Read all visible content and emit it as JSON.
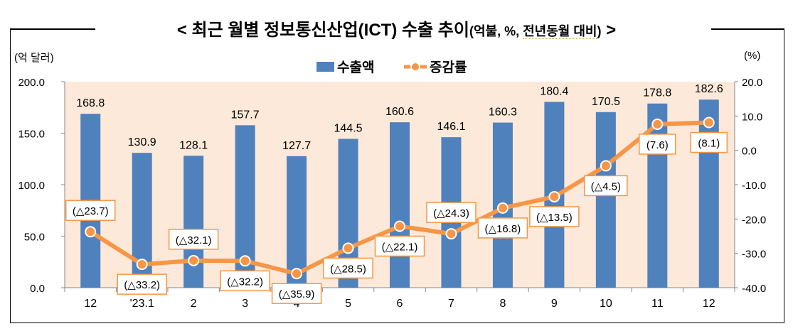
{
  "title": {
    "main": "< 최근 월별 정보통신산업(ICT) 수출 추이",
    "sub_prefix": "(억불, %, ",
    "sub_underlined": "전년동월 대비",
    "sub_suffix": ")",
    "close": " >"
  },
  "chart_data": {
    "type": "bar+line",
    "categories": [
      "12",
      "'23.1",
      "2",
      "3",
      "4",
      "5",
      "6",
      "7",
      "8",
      "9",
      "10",
      "11",
      "12"
    ],
    "series": [
      {
        "name": "수출액",
        "type": "bar",
        "axis": "left",
        "color": "#4f81bd",
        "values": [
          168.8,
          130.9,
          128.1,
          157.7,
          127.7,
          144.5,
          160.6,
          146.1,
          160.3,
          180.4,
          170.5,
          178.8,
          182.6
        ],
        "labels": [
          "168.8",
          "130.9",
          "128.1",
          "157.7",
          "127.7",
          "144.5",
          "160.6",
          "146.1",
          "160.3",
          "180.4",
          "170.5",
          "178.8",
          "182.6"
        ]
      },
      {
        "name": "증감률",
        "type": "line",
        "axis": "right",
        "color": "#f79646",
        "values": [
          -23.7,
          -33.2,
          -32.1,
          -32.2,
          -35.9,
          -28.5,
          -22.1,
          -24.3,
          -16.8,
          -13.5,
          -4.5,
          7.6,
          8.1
        ],
        "labels": [
          "(△23.7)",
          "(△33.2)",
          "(△32.1)",
          "(△32.2)",
          "(△35.9)",
          "(△28.5)",
          "(△22.1)",
          "(△24.3)",
          "(△16.8)",
          "(△13.5)",
          "(△4.5)",
          "(7.6)",
          "(8.1)"
        ],
        "label_side": [
          "above",
          "below",
          "above",
          "below",
          "below",
          "below",
          "below",
          "above",
          "below",
          "below",
          "below",
          "below",
          "below"
        ]
      }
    ],
    "left_axis": {
      "label": "(억 달러)",
      "ylim": [
        0,
        200
      ],
      "ticks": [
        "0.0",
        "50.0",
        "100.0",
        "150.0",
        "200.0"
      ]
    },
    "right_axis": {
      "label": "(%)",
      "ylim": [
        -40,
        20
      ],
      "ticks": [
        "-40.0",
        "-30.0",
        "-20.0",
        "-10.0",
        "0.0",
        "10.0",
        "20.0"
      ]
    },
    "legend": "top-center",
    "plot_background": "#fde9d9",
    "grid": false
  }
}
